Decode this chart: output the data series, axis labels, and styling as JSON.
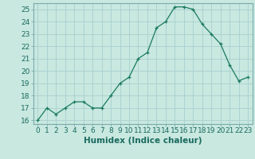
{
  "x": [
    0,
    1,
    2,
    3,
    4,
    5,
    6,
    7,
    8,
    9,
    10,
    11,
    12,
    13,
    14,
    15,
    16,
    17,
    18,
    19,
    20,
    21,
    22,
    23
  ],
  "y": [
    16,
    17,
    16.5,
    17,
    17.5,
    17.5,
    17,
    17,
    18,
    19,
    19.5,
    21,
    21.5,
    23.5,
    24,
    25.2,
    25.2,
    25,
    23.8,
    23,
    22.2,
    20.5,
    19.2,
    19.5
  ],
  "line_color": "#1a7a5e",
  "marker": "+",
  "marker_color": "#1a7a5e",
  "bg_color": "#c8e8e0",
  "grid_color": "#aacfcf",
  "xlabel": "Humidex (Indice chaleur)",
  "xlim": [
    -0.5,
    23.5
  ],
  "ylim": [
    15.7,
    25.5
  ],
  "yticks": [
    16,
    17,
    18,
    19,
    20,
    21,
    22,
    23,
    24,
    25
  ],
  "xticks": [
    0,
    1,
    2,
    3,
    4,
    5,
    6,
    7,
    8,
    9,
    10,
    11,
    12,
    13,
    14,
    15,
    16,
    17,
    18,
    19,
    20,
    21,
    22,
    23
  ],
  "tick_label_fontsize": 6.5,
  "xlabel_fontsize": 7.5,
  "label_color": "#1a6a5e",
  "spine_color": "#7aabab",
  "tick_color": "#7aabab"
}
